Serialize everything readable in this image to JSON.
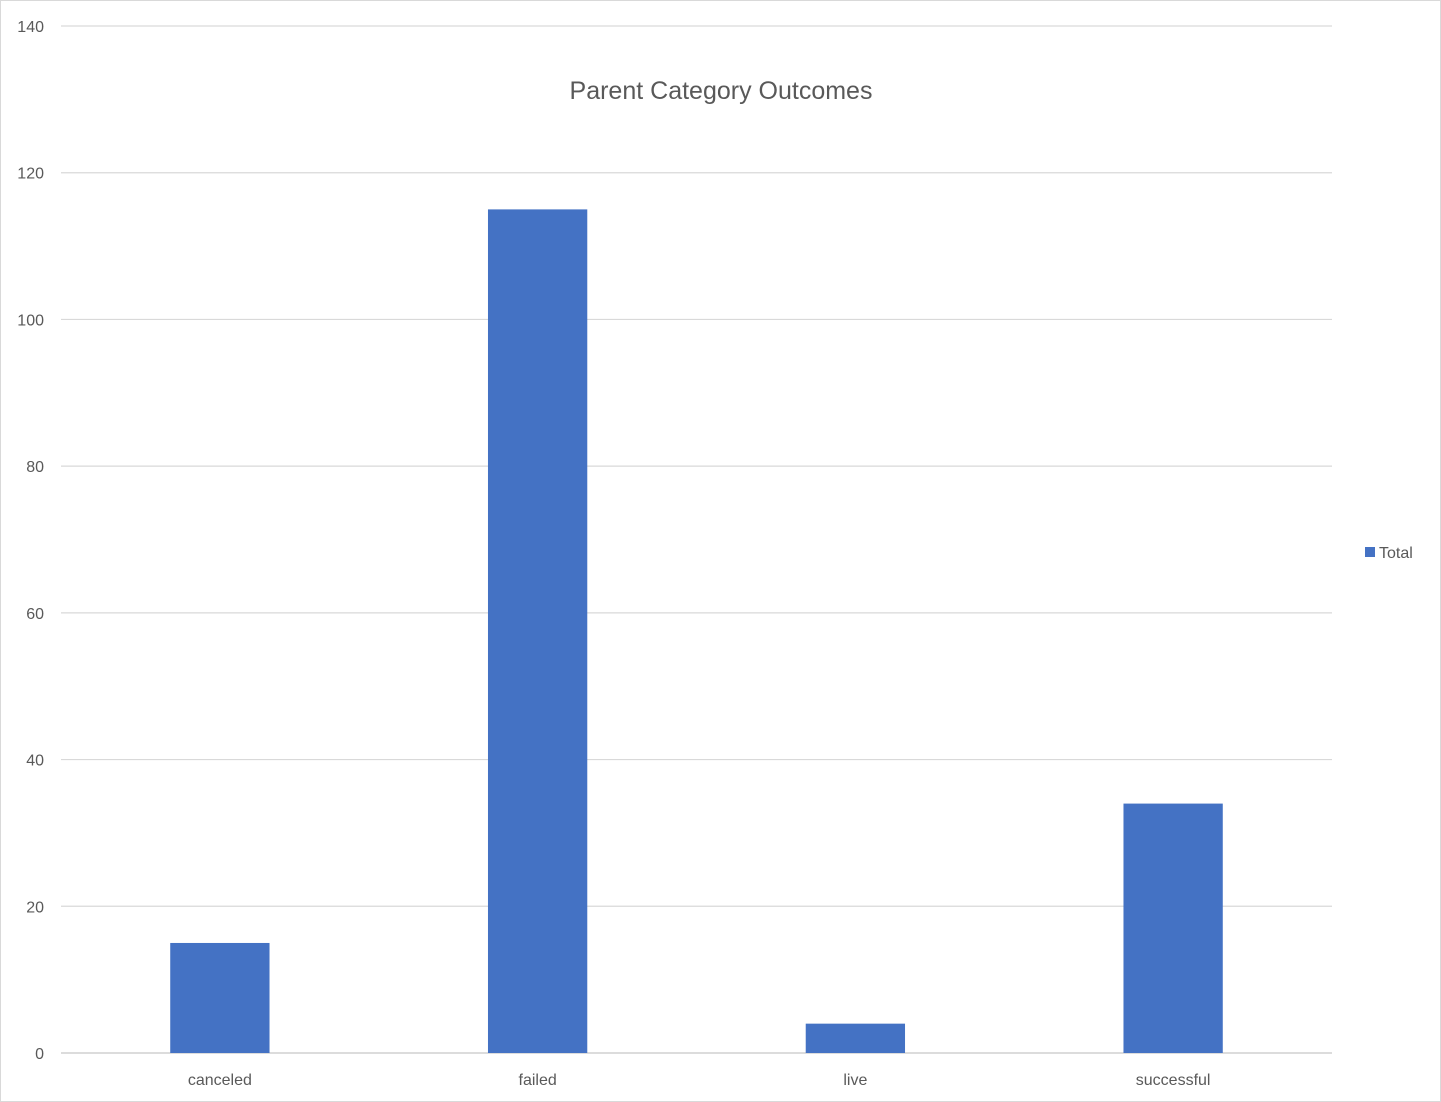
{
  "chart_data": {
    "type": "bar",
    "title": "Parent Category Outcomes",
    "xlabel": "",
    "ylabel": "",
    "categories": [
      "canceled",
      "failed",
      "live",
      "successful"
    ],
    "series": [
      {
        "name": "Total",
        "values": [
          15,
          115,
          4,
          34
        ],
        "color": "#4472C4"
      }
    ],
    "ylim": [
      0,
      140
    ],
    "yticks": [
      0,
      20,
      40,
      60,
      80,
      100,
      120,
      140
    ],
    "grid": true,
    "legend_position": "right"
  }
}
